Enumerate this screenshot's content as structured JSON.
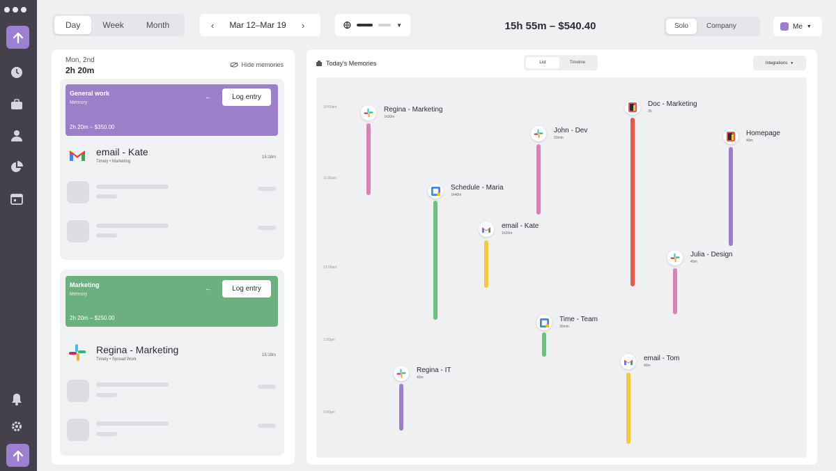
{
  "header": {
    "views": [
      "Day",
      "Week",
      "Month"
    ],
    "date_range": "Mar 12–Mar 19",
    "summary": "15h 55m – $540.40",
    "scopes": [
      "Solo",
      "Company"
    ],
    "user_label": "Me"
  },
  "left_panel": {
    "date": "Mon, 2nd",
    "total": "2h 20m",
    "hide_label": "Hide memories",
    "cards": [
      {
        "banner_title": "General work",
        "banner_sub": "Memory",
        "banner_amount": "2h 20m – $350.00",
        "banner_color": "#9b7fc9",
        "log_label": "Log entry",
        "entry_title": "email - Kate",
        "entry_sub": "Timely • Marketing",
        "entry_time": "15:18m"
      },
      {
        "banner_title": "Marketing",
        "banner_sub": "Memory",
        "banner_amount": "2h 20m – $250.00",
        "banner_color": "#6cb07f",
        "log_label": "Log entry",
        "entry_title": "Regina - Marketing",
        "entry_sub": "Timely • Spread Work",
        "entry_time": "15:18m"
      }
    ]
  },
  "right_panel": {
    "title": "Today's Memories",
    "toggle": [
      "List",
      "Timeline"
    ],
    "integrations_label": "Integrations",
    "ticks": [
      "10:00am",
      "11:00am",
      "12:00pm",
      "1:00pm",
      "2:00pm"
    ],
    "events": [
      {
        "label": "Regina - Marketing",
        "dur": "1h30m",
        "icon": "slack-icon",
        "color": "#d980b4"
      },
      {
        "label": "Schedule - Maria",
        "dur": "1h40m",
        "icon": "calendar-icon",
        "color": "#6cc17f"
      },
      {
        "label": "email - Kate",
        "dur": "1h20m",
        "icon": "gmail-icon",
        "color": "#f5c842"
      },
      {
        "label": "John - Dev",
        "dur": "50min",
        "icon": "slack-icon",
        "color": "#d980b4"
      },
      {
        "label": "Time - Team",
        "dur": "30min",
        "icon": "calendar-icon",
        "color": "#6cc17f"
      },
      {
        "label": "Doc - Marketing",
        "dur": "2h",
        "icon": "doc-icon",
        "color": "#e8584e"
      },
      {
        "label": "email - Tom",
        "dur": "40m",
        "icon": "gmail-icon",
        "color": "#f5c842"
      },
      {
        "label": "Homepage",
        "dur": "40m",
        "icon": "doc-icon",
        "color": "#9b7fc9"
      },
      {
        "label": "Julia - Design",
        "dur": "40m",
        "icon": "slack-icon",
        "color": "#d980b4"
      },
      {
        "label": "Regina - IT",
        "dur": "40m",
        "icon": "slack-icon",
        "color": "#9b7fc9"
      }
    ]
  }
}
